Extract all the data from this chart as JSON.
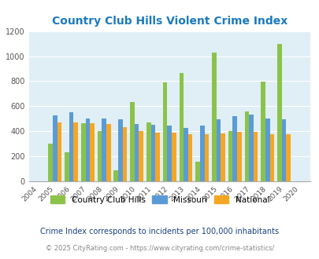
{
  "title": "Country Club Hills Violent Crime Index",
  "years": [
    2004,
    2005,
    2006,
    2007,
    2008,
    2009,
    2010,
    2011,
    2012,
    2013,
    2014,
    2015,
    2016,
    2017,
    2018,
    2019,
    2020
  ],
  "cch": [
    null,
    300,
    230,
    465,
    400,
    85,
    635,
    470,
    790,
    865,
    155,
    1030,
    400,
    555,
    795,
    1100,
    null
  ],
  "missouri": [
    null,
    525,
    550,
    500,
    500,
    495,
    455,
    450,
    445,
    425,
    445,
    495,
    520,
    535,
    500,
    495,
    null
  ],
  "national": [
    null,
    470,
    470,
    465,
    455,
    430,
    400,
    390,
    390,
    375,
    375,
    385,
    395,
    395,
    375,
    375,
    null
  ],
  "cch_color": "#8bc34a",
  "missouri_color": "#5b9bd5",
  "national_color": "#f5a623",
  "bg_color": "#e0eef5",
  "title_color": "#1a7abf",
  "ylabel_max": 1200,
  "yticks": [
    0,
    200,
    400,
    600,
    800,
    1000,
    1200
  ],
  "legend_labels": [
    "Country Club Hills",
    "Missouri",
    "National"
  ],
  "footnote1": "Crime Index corresponds to incidents per 100,000 inhabitants",
  "footnote2": "© 2025 CityRating.com - https://www.cityrating.com/crime-statistics/",
  "footnote1_color": "#1a4080",
  "footnote2_color": "#888888",
  "footnote2_url_color": "#3399cc"
}
